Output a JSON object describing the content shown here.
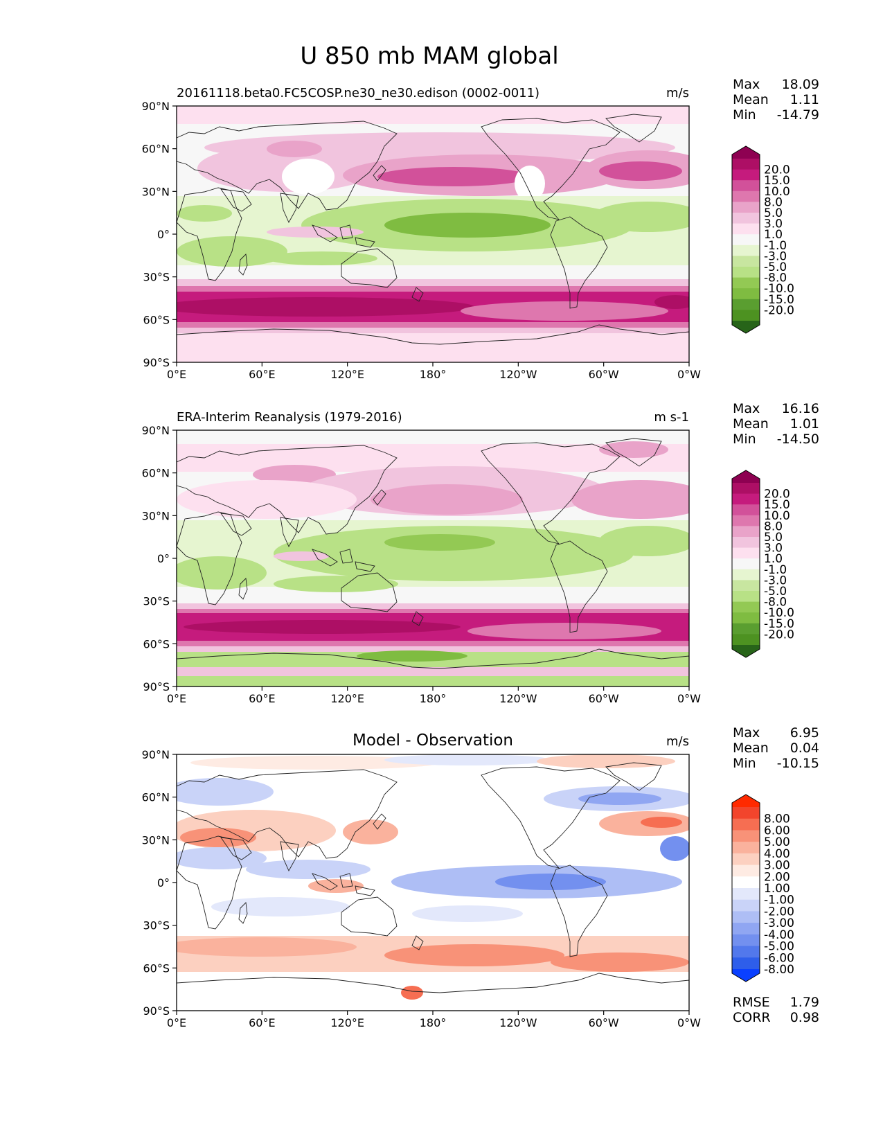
{
  "figure": {
    "title": "U 850 mb MAM global"
  },
  "x_ticks": [
    "0°E",
    "60°E",
    "120°E",
    "180°",
    "120°W",
    "60°W",
    "0°W"
  ],
  "y_ticks": [
    "90°N",
    "60°N",
    "30°N",
    "0°",
    "30°S",
    "60°S",
    "90°S"
  ],
  "colorbar_abs": {
    "labels": [
      "20.0",
      "15.0",
      "10.0",
      "8.0",
      "5.0",
      "3.0",
      "1.0",
      "-1.0",
      "-3.0",
      "-5.0",
      "-8.0",
      "-10.0",
      "-15.0",
      "-20.0"
    ],
    "colors": [
      "#8e0152",
      "#ad0f65",
      "#c51b7d",
      "#d2519a",
      "#de77ae",
      "#e9a3c9",
      "#f1c4de",
      "#fde0ef",
      "#f7f7f7",
      "#e6f5d0",
      "#c8e6a0",
      "#b8e186",
      "#93c954",
      "#7fbc41",
      "#5a9e30",
      "#4d9221",
      "#276419"
    ]
  },
  "colorbar_diff": {
    "labels": [
      "8.00",
      "6.00",
      "5.00",
      "4.00",
      "3.00",
      "2.00",
      "1.00",
      "-1.00",
      "-2.00",
      "-3.00",
      "-4.00",
      "-5.00",
      "-6.00",
      "-8.00"
    ],
    "colors": [
      "#ff2a00",
      "#f2452c",
      "#f66e52",
      "#f89278",
      "#fab29d",
      "#fcd0c0",
      "#feebe3",
      "#ffffff",
      "#e3e8fb",
      "#c9d3f8",
      "#aebef5",
      "#90a6f2",
      "#7390ef",
      "#5278ec",
      "#2e5eea",
      "#0a40ff"
    ]
  },
  "panels": [
    {
      "id": "model",
      "title_left": "20161118.beta0.FC5COSP.ne30_ne30.edison (0002-0011)",
      "title_center": "",
      "units": "m/s",
      "stats": [
        {
          "label": "Max",
          "value": "18.09"
        },
        {
          "label": "Mean",
          "value": "1.11"
        },
        {
          "label": "Min",
          "value": "-14.79"
        }
      ],
      "metrics": []
    },
    {
      "id": "obs",
      "title_left": "ERA-Interim Reanalysis (1979-2016)",
      "title_center": "",
      "units": "m s-1",
      "stats": [
        {
          "label": "Max",
          "value": "16.16"
        },
        {
          "label": "Mean",
          "value": "1.01"
        },
        {
          "label": "Min",
          "value": "-14.50"
        }
      ],
      "metrics": []
    },
    {
      "id": "diff",
      "title_left": "",
      "title_center": "Model - Observation",
      "units": "m/s",
      "stats": [
        {
          "label": "Max",
          "value": "6.95"
        },
        {
          "label": "Mean",
          "value": "0.04"
        },
        {
          "label": "Min",
          "value": "-10.15"
        }
      ],
      "metrics": [
        {
          "label": "RMSE",
          "value": "1.79"
        },
        {
          "label": "CORR",
          "value": "0.98"
        }
      ]
    }
  ]
}
